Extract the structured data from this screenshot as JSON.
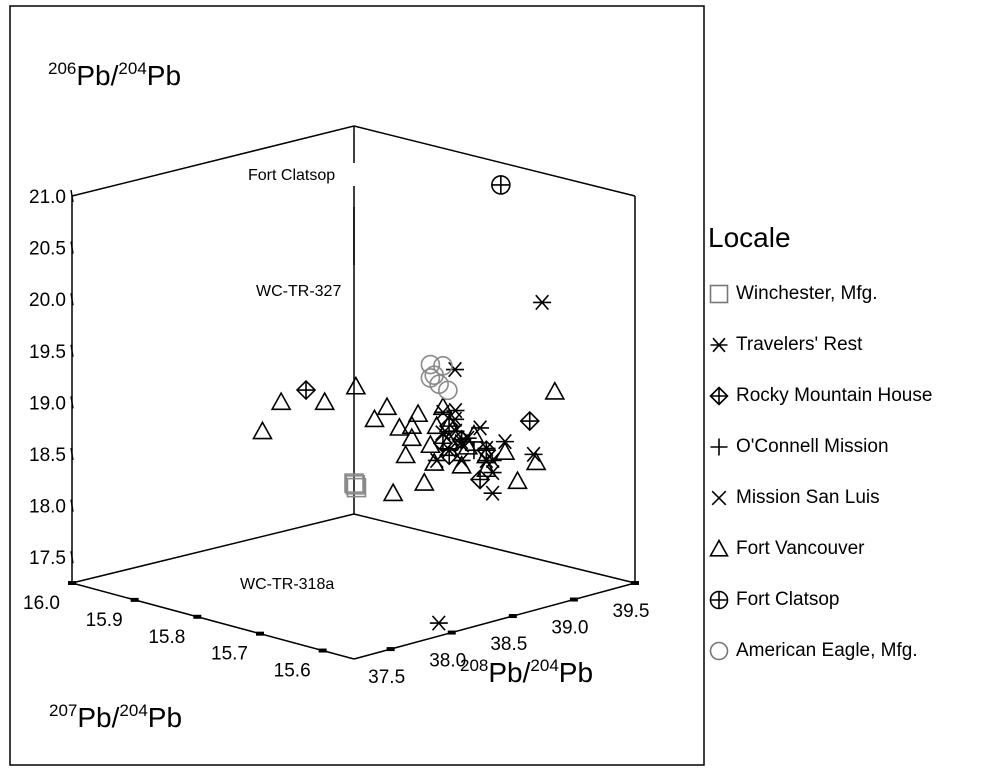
{
  "chart_data": {
    "type": "scatter",
    "dimensions": 3,
    "axes": {
      "z": {
        "label_main": "Pb/",
        "label_mass1": "206",
        "label_mass2": "204",
        "label_tail": "Pb",
        "ticks": [
          "17.5",
          "18.0",
          "18.5",
          "19.0",
          "19.5",
          "20.0",
          "20.5",
          "21.0"
        ],
        "range": [
          17.25,
          21.0
        ]
      },
      "x": {
        "label_mass1": "207",
        "label_mass2": "204",
        "label_main": "Pb/",
        "label_tail": "Pb",
        "ticks": [
          "16.0",
          "15.9",
          "15.8",
          "15.7",
          "15.6"
        ],
        "range": [
          16.0,
          15.55
        ]
      },
      "y": {
        "label_mass1": "208",
        "label_mass2": "204",
        "label_main": "Pb/",
        "label_tail": "Pb",
        "ticks": [
          "37.5",
          "38.0",
          "38.5",
          "39.0",
          "39.5"
        ],
        "range": [
          37.2,
          39.5
        ]
      }
    },
    "legend_title": "Locale",
    "legend_position": "right",
    "series": [
      {
        "name": "Winchester, Mfg.",
        "marker": "square",
        "color": "#8a8a8a",
        "points": [
          [
            15.78,
            38.38,
            18.2
          ],
          [
            15.78,
            38.4,
            18.15
          ],
          [
            15.78,
            38.39,
            18.18
          ]
        ]
      },
      {
        "name": "Travelers' Rest",
        "marker": "asterisk",
        "color": "#000000",
        "points": [
          [
            15.63,
            39.15,
            19.95
          ],
          [
            15.75,
            38.92,
            16.72
          ],
          [
            15.67,
            38.95,
            18.1
          ],
          [
            15.7,
            38.8,
            18.9
          ],
          [
            15.72,
            38.9,
            18.75
          ],
          [
            15.7,
            38.9,
            18.6
          ],
          [
            15.7,
            38.8,
            18.7
          ],
          [
            15.72,
            38.8,
            18.85
          ],
          [
            15.71,
            38.9,
            18.55
          ],
          [
            15.71,
            38.8,
            18.5
          ],
          [
            15.72,
            38.75,
            18.4
          ],
          [
            15.7,
            38.85,
            18.4
          ],
          [
            15.67,
            38.95,
            18.3
          ],
          [
            15.66,
            38.9,
            18.45
          ],
          [
            15.66,
            39.0,
            18.6
          ],
          [
            15.67,
            38.9,
            18.55
          ],
          [
            15.63,
            39.08,
            18.5
          ],
          [
            15.69,
            38.95,
            18.7
          ],
          [
            15.73,
            38.95,
            19.2
          ],
          [
            15.68,
            38.95,
            18.4
          ]
        ]
      },
      {
        "name": "Rocky Mountain House",
        "marker": "diamond-plus",
        "color": "#000000",
        "points": [
          [
            15.88,
            38.5,
            18.9
          ],
          [
            15.64,
            39.1,
            18.8
          ],
          [
            15.69,
            38.95,
            18.2
          ],
          [
            15.72,
            38.8,
            18.55
          ],
          [
            15.7,
            38.85,
            18.6
          ],
          [
            15.72,
            38.85,
            18.7
          ],
          [
            15.68,
            38.95,
            18.5
          ],
          [
            15.71,
            38.8,
            18.45
          ]
        ]
      },
      {
        "name": "O'Connell Mission",
        "marker": "plus",
        "color": "#000000",
        "points": [
          [
            15.7,
            38.85,
            18.6
          ],
          [
            15.69,
            38.9,
            18.5
          ]
        ]
      },
      {
        "name": "Mission San Luis",
        "marker": "x",
        "color": "#000000",
        "points": [
          [
            15.72,
            38.8,
            18.65
          ],
          [
            15.7,
            38.85,
            18.55
          ]
        ]
      },
      {
        "name": "Fort Vancouver",
        "marker": "triangle",
        "color": "#000000",
        "points": [
          [
            15.91,
            38.45,
            18.75
          ],
          [
            15.93,
            38.4,
            18.45
          ],
          [
            15.82,
            38.6,
            19.0
          ],
          [
            15.86,
            38.55,
            18.8
          ],
          [
            15.78,
            38.65,
            18.85
          ],
          [
            15.75,
            38.7,
            18.7
          ],
          [
            15.73,
            38.8,
            18.7
          ],
          [
            15.76,
            38.75,
            18.55
          ],
          [
            15.74,
            38.8,
            18.5
          ],
          [
            15.72,
            38.85,
            18.55
          ],
          [
            15.68,
            38.95,
            18.45
          ],
          [
            15.66,
            39.0,
            18.5
          ],
          [
            15.6,
            39.1,
            19.15
          ],
          [
            15.62,
            39.05,
            18.45
          ],
          [
            15.73,
            38.78,
            18.35
          ],
          [
            15.7,
            38.85,
            18.35
          ],
          [
            15.67,
            38.9,
            18.35
          ],
          [
            15.78,
            38.7,
            18.0
          ],
          [
            15.74,
            38.75,
            18.15
          ],
          [
            15.64,
            39.0,
            18.25
          ],
          [
            15.77,
            38.7,
            18.65
          ],
          [
            15.8,
            38.65,
            18.7
          ],
          [
            15.71,
            38.8,
            18.75
          ],
          [
            15.69,
            38.9,
            18.65
          ],
          [
            15.75,
            38.75,
            18.8
          ],
          [
            15.72,
            38.8,
            18.9
          ],
          [
            15.76,
            38.7,
            18.4
          ],
          [
            15.69,
            38.85,
            18.55
          ]
        ]
      },
      {
        "name": "Fort Clatsop",
        "marker": "circle-plus",
        "color": "#000000",
        "points": [
          [
            15.69,
            39.12,
            21.0
          ]
        ]
      },
      {
        "name": "American Eagle, Mfg.",
        "marker": "circle",
        "color": "#8a8a8a",
        "points": [
          [
            15.74,
            38.8,
            19.28
          ],
          [
            15.73,
            38.78,
            19.2
          ],
          [
            15.73,
            38.82,
            19.1
          ],
          [
            15.72,
            38.84,
            19.05
          ],
          [
            15.74,
            38.8,
            19.15
          ],
          [
            15.72,
            38.8,
            19.3
          ]
        ]
      }
    ],
    "annotations": [
      "Fort Clatsop",
      "WC-TR-327",
      "WC-TR-318a"
    ],
    "grid": false
  }
}
